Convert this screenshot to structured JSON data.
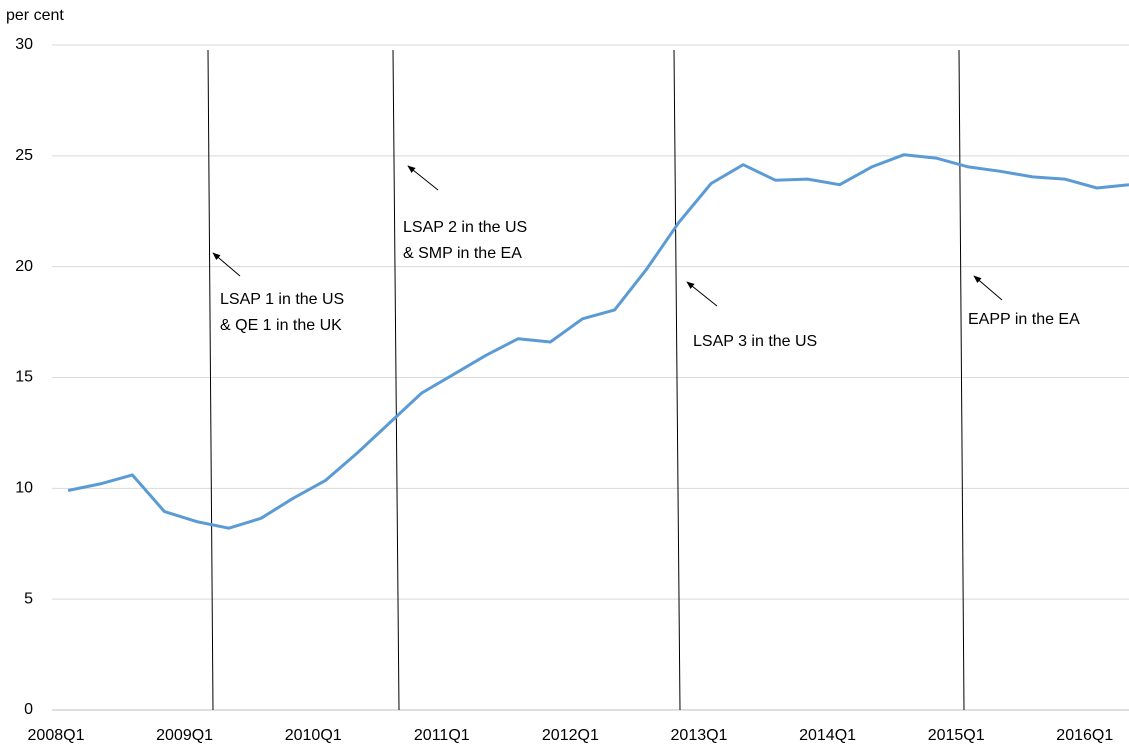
{
  "chart_data": {
    "type": "line",
    "y_label": "per cent",
    "categories": [
      "2008Q1",
      null,
      null,
      null,
      "2009Q1",
      null,
      null,
      null,
      "2010Q1",
      null,
      null,
      null,
      "2011Q1",
      null,
      null,
      null,
      "2012Q1",
      null,
      null,
      null,
      "2013Q1",
      null,
      null,
      null,
      "2014Q1",
      null,
      null,
      null,
      "2015Q1",
      null,
      null,
      null,
      "2016Q1",
      null
    ],
    "series": [
      {
        "color": "#5b9bd5",
        "values": [
          9.9,
          10.2,
          10.6,
          8.95,
          8.5,
          8.2,
          8.65,
          9.55,
          10.35,
          11.6,
          12.95,
          14.3,
          15.15,
          16.0,
          16.75,
          16.6,
          17.65,
          18.05,
          19.9,
          22.0,
          23.75,
          24.6,
          23.9,
          23.95,
          23.7,
          24.5,
          25.05,
          24.9,
          24.5,
          24.3,
          24.05,
          23.95,
          23.55,
          23.7
        ]
      }
    ],
    "ylim": [
      0,
      30
    ],
    "yticks": [
      0,
      5,
      10,
      15,
      20,
      25,
      30
    ],
    "grid": true,
    "annotations": [
      {
        "lines": [
          "LSAP 1 in the US",
          "& QE 1 in the UK"
        ]
      },
      {
        "lines": [
          "LSAP 2 in the US",
          "& SMP in the EA"
        ]
      },
      {
        "lines": [
          "LSAP 3 in the US"
        ]
      },
      {
        "lines": [
          "EAPP in the EA"
        ]
      }
    ]
  }
}
